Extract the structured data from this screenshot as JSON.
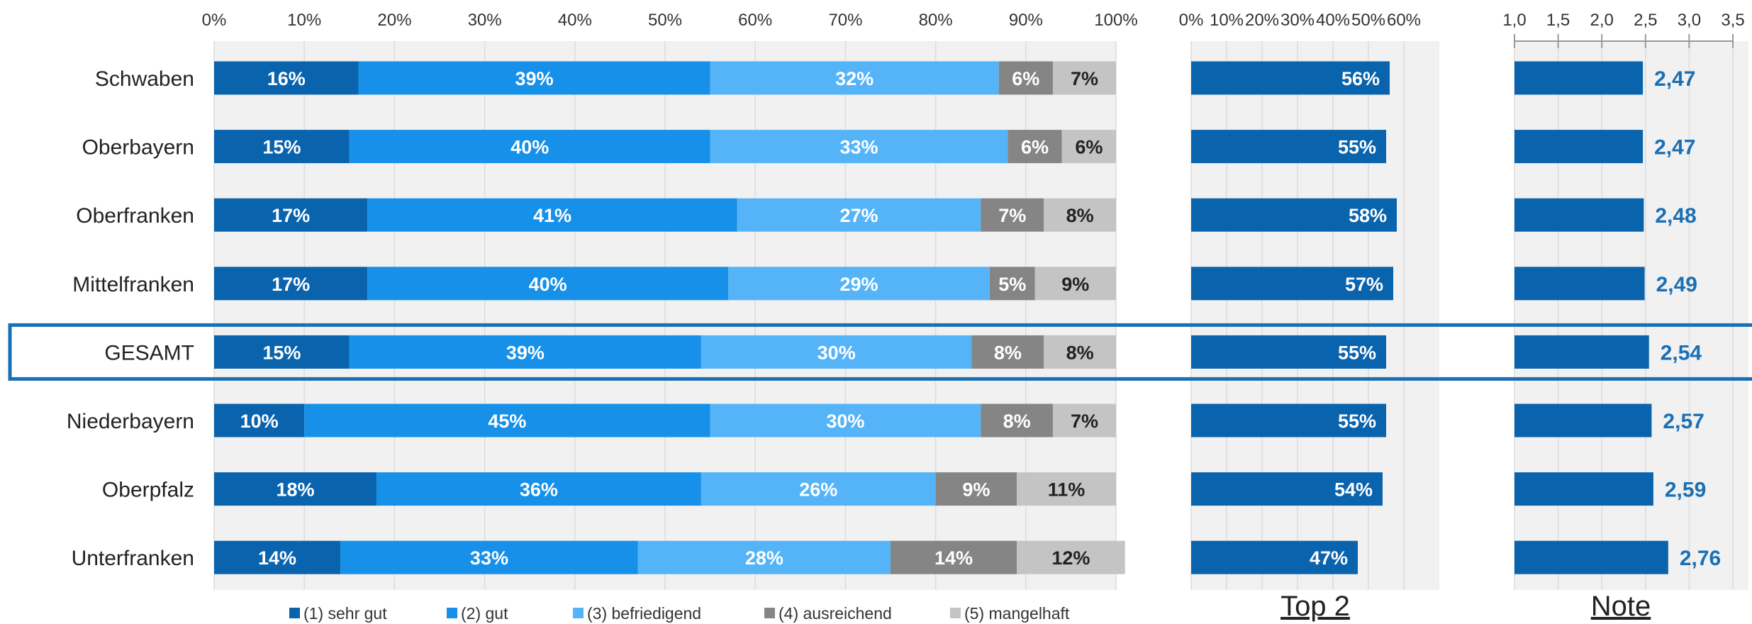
{
  "colors": {
    "sehr_gut": "#0a63ad",
    "gut": "#1690e8",
    "befriedigend": "#55b4f7",
    "ausreichend": "#858585",
    "mangelhaft": "#c4c4c4",
    "note_text": "#1a6fb5",
    "highlight_border": "#1a6fb5",
    "panel_bg": "#f1f1f1"
  },
  "chart_data": [
    {
      "type": "bar",
      "orientation": "horizontal",
      "stacked": true,
      "percent": true,
      "categories": [
        "Schwaben",
        "Oberbayern",
        "Oberfranken",
        "Mittelfranken",
        "GESAMT",
        "Niederbayern",
        "Oberpfalz",
        "Unterfranken"
      ],
      "highlighted_category": "GESAMT",
      "xlim": [
        0,
        100
      ],
      "x_ticks": [
        "0%",
        "10%",
        "20%",
        "30%",
        "40%",
        "50%",
        "60%",
        "70%",
        "80%",
        "90%",
        "100%"
      ],
      "legend_position": "bottom",
      "series": [
        {
          "name": "(1) sehr gut",
          "color_key": "sehr_gut",
          "values": [
            16,
            15,
            17,
            17,
            15,
            10,
            18,
            14
          ],
          "labels": [
            "16%",
            "15%",
            "17%",
            "17%",
            "15%",
            "10%",
            "18%",
            "14%"
          ]
        },
        {
          "name": "(2) gut",
          "color_key": "gut",
          "values": [
            39,
            40,
            41,
            40,
            39,
            45,
            36,
            33
          ],
          "labels": [
            "39%",
            "40%",
            "41%",
            "40%",
            "39%",
            "45%",
            "36%",
            "33%"
          ]
        },
        {
          "name": "(3) befriedigend",
          "color_key": "befriedigend",
          "values": [
            32,
            33,
            27,
            29,
            30,
            30,
            26,
            28
          ],
          "labels": [
            "32%",
            "33%",
            "27%",
            "29%",
            "30%",
            "30%",
            "26%",
            "28%"
          ]
        },
        {
          "name": "(4) ausreichend",
          "color_key": "ausreichend",
          "values": [
            6,
            6,
            7,
            5,
            8,
            8,
            9,
            14
          ],
          "labels": [
            "6%",
            "6%",
            "7%",
            "5%",
            "8%",
            "8%",
            "9%",
            "14%"
          ]
        },
        {
          "name": "(5) mangelhaft",
          "color_key": "mangelhaft",
          "values": [
            7,
            6,
            8,
            9,
            8,
            7,
            11,
            12
          ],
          "labels": [
            "7%",
            "6%",
            "8%",
            "9%",
            "8%",
            "7%",
            "11%",
            "12%"
          ]
        }
      ]
    },
    {
      "type": "bar",
      "orientation": "horizontal",
      "title": "Top 2",
      "xlim": [
        0,
        70
      ],
      "x_ticks": [
        "0%",
        "10%",
        "20%",
        "30%",
        "40%",
        "50%",
        "60%"
      ],
      "categories": [
        "Schwaben",
        "Oberbayern",
        "Oberfranken",
        "Mittelfranken",
        "GESAMT",
        "Niederbayern",
        "Oberpfalz",
        "Unterfranken"
      ],
      "values": [
        56,
        55,
        58,
        57,
        55,
        55,
        54,
        47
      ],
      "labels": [
        "56%",
        "55%",
        "58%",
        "57%",
        "55%",
        "55%",
        "54%",
        "47%"
      ]
    },
    {
      "type": "bar",
      "orientation": "horizontal",
      "title": "Note",
      "xlim": [
        1.0,
        3.5
      ],
      "x_ticks": [
        "1,0",
        "1,5",
        "2,0",
        "2,5",
        "3,0",
        "3,5"
      ],
      "categories": [
        "Schwaben",
        "Oberbayern",
        "Oberfranken",
        "Mittelfranken",
        "GESAMT",
        "Niederbayern",
        "Oberpfalz",
        "Unterfranken"
      ],
      "values": [
        2.47,
        2.47,
        2.48,
        2.49,
        2.54,
        2.57,
        2.59,
        2.76
      ],
      "labels": [
        "2,47",
        "2,47",
        "2,48",
        "2,49",
        "2,54",
        "2,57",
        "2,59",
        "2,76"
      ]
    }
  ]
}
